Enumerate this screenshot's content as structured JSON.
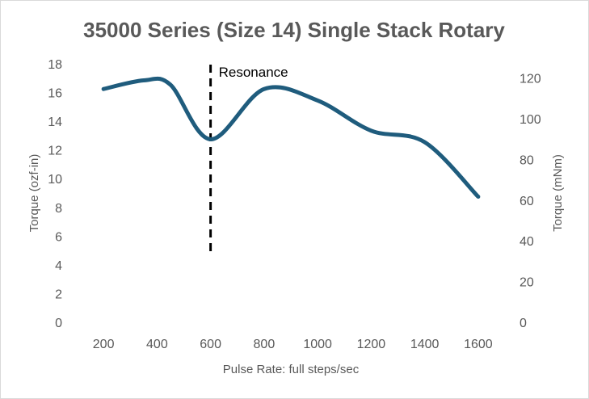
{
  "chart_data": {
    "type": "line",
    "title": "35000 Series (Size 14) Single Stack Rotary",
    "xlabel": "Pulse Rate:  full steps/sec",
    "ylabel": "Torque (ozf-in)",
    "y2label": "Torque (mNm)",
    "x": [
      200,
      350,
      450,
      600,
      800,
      1000,
      1200,
      1400,
      1600
    ],
    "series": [
      {
        "name": "Torque",
        "values": [
          16.3,
          16.9,
          16.6,
          12.8,
          16.3,
          15.5,
          13.4,
          12.6,
          8.8
        ],
        "color": "#1f5c7d"
      }
    ],
    "xticks": [
      "200",
      "400",
      "600",
      "800",
      "1000",
      "1200",
      "1400",
      "1600"
    ],
    "yticks": [
      "0",
      "2",
      "4",
      "6",
      "8",
      "10",
      "12",
      "14",
      "16",
      "18"
    ],
    "y2ticks": [
      "0",
      "20",
      "40",
      "60",
      "80",
      "100",
      "120"
    ],
    "xlim": [
      100,
      1700
    ],
    "ylim": [
      0,
      18
    ],
    "y2lim": [
      0,
      127
    ],
    "grid": false,
    "annotations": [
      {
        "label": "Resonance",
        "x": 600,
        "y_from": 5,
        "y_to": 18
      }
    ]
  }
}
